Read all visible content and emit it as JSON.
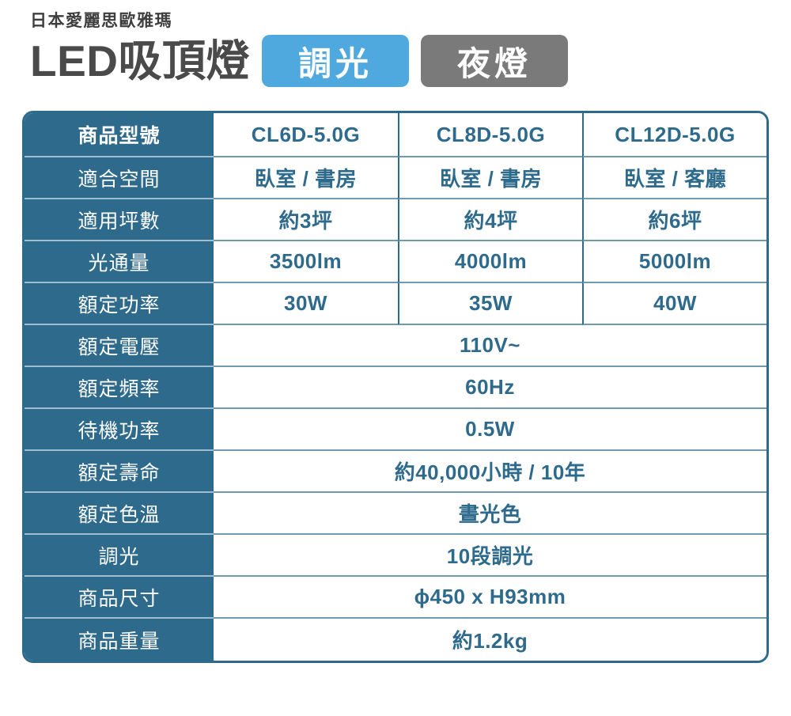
{
  "header": {
    "brand": "日本愛麗思歐雅瑪",
    "title": "LED吸頂燈",
    "badges": [
      {
        "label": "調光",
        "color": "#4fa9de"
      },
      {
        "label": "夜燈",
        "color": "#7a7a7a"
      }
    ]
  },
  "table": {
    "rows": [
      {
        "label": "商品型號",
        "values": [
          "CL6D-5.0G",
          "CL8D-5.0G",
          "CL12D-5.0G"
        ]
      },
      {
        "label": "適合空間",
        "values": [
          "臥室 / 書房",
          "臥室 / 書房",
          "臥室 / 客廳"
        ]
      },
      {
        "label": "適用坪數",
        "values": [
          "約3坪",
          "約4坪",
          "約6坪"
        ]
      },
      {
        "label": "光通量",
        "values": [
          "3500lm",
          "4000lm",
          "5000lm"
        ]
      },
      {
        "label": "額定功率",
        "values": [
          "30W",
          "35W",
          "40W"
        ]
      },
      {
        "label": "額定電壓",
        "value": "110V~"
      },
      {
        "label": "額定頻率",
        "value": "60Hz"
      },
      {
        "label": "待機功率",
        "value": "0.5W"
      },
      {
        "label": "額定壽命",
        "value": "約40,000小時 / 10年"
      },
      {
        "label": "額定色溫",
        "value": "晝光色"
      },
      {
        "label": "調光",
        "value": "10段調光"
      },
      {
        "label": "商品尺寸",
        "value": "ϕ450 x H93mm"
      },
      {
        "label": "商品重量",
        "value": "約1.2kg"
      }
    ]
  },
  "colors": {
    "accent_teal": "#2e6a8c",
    "badge_blue": "#4fa9de",
    "badge_gray": "#7a7a7a",
    "title_gray": "#4a4a4a",
    "left_separator": "#9fbdce",
    "data_separator": "#6f9ab1"
  }
}
